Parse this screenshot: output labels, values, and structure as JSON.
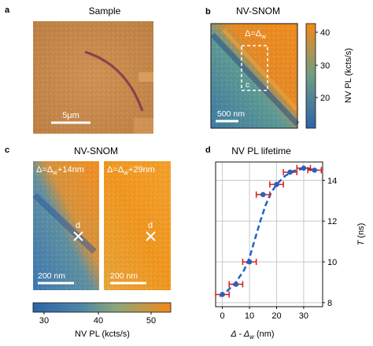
{
  "panels": {
    "a": {
      "letter": "a",
      "title": "Sample",
      "scalebar": "5μm"
    },
    "b": {
      "letter": "b",
      "title": "NV-SNOM",
      "delta_label": "Δ=Δ",
      "delta_sub": "w",
      "box_label": "c",
      "scalebar": "500 nm",
      "colorbar": {
        "ticks": [
          "40",
          "30",
          "20"
        ],
        "label": "NV PL (kcts/s)"
      }
    },
    "c": {
      "letter": "c",
      "title": "NV-SNOM",
      "left": {
        "label_pre": "Δ=Δ",
        "label_sub": "w",
        "label_post": "+14nm",
        "marker": "d",
        "scalebar": "200 nm"
      },
      "right": {
        "label_pre": "Δ=Δ",
        "label_sub": "w",
        "label_post": "+29nm",
        "marker": "d",
        "scalebar": "200 nm"
      },
      "colorbar": {
        "ticks": [
          "30",
          "40",
          "50"
        ],
        "label": "NV PL (kcts/s)"
      }
    },
    "d": {
      "letter": "d",
      "title": "NV PL lifetime"
    }
  },
  "colors": {
    "optical_bg": "#c98a4c",
    "flake_line": "#8a3f4e",
    "cmap_low": "#2e63a8",
    "cmap_mid": "#6f9c86",
    "cmap_high": "#f28a18",
    "fit_line": "#1f63c6",
    "marker_fill": "#2f5fb8",
    "errorbar": "#d21e1e"
  },
  "chart_data": {
    "type": "scatter",
    "title": "NV PL lifetime",
    "xlabel": "Δ - Δ",
    "xlabel_sub": "w",
    "xlabel_unit": " (nm)",
    "ylabel": "T",
    "ylabel_unit": " (ns)",
    "xlim": [
      -2.5,
      37
    ],
    "ylim": [
      7.8,
      14.9
    ],
    "xticks": [
      0,
      10,
      20,
      30
    ],
    "yticks": [
      8,
      10,
      12,
      14
    ],
    "grid": true,
    "points": [
      {
        "x": 0,
        "y": 8.4,
        "xerr": 2.5
      },
      {
        "x": 5,
        "y": 8.9,
        "xerr": 2.5
      },
      {
        "x": 10,
        "y": 10.0,
        "xerr": 2.5
      },
      {
        "x": 15,
        "y": 13.3,
        "xerr": 2.5
      },
      {
        "x": 20,
        "y": 13.8,
        "xerr": 2.5
      },
      {
        "x": 25,
        "y": 14.4,
        "xerr": 2.5
      },
      {
        "x": 30,
        "y": 14.6,
        "xerr": 2.5
      },
      {
        "x": 34,
        "y": 14.5,
        "xerr": 2.5
      }
    ],
    "fit": {
      "style": "dashed",
      "x": [
        -1,
        2,
        5,
        8,
        10,
        12,
        14,
        16,
        18,
        20,
        23,
        26,
        29,
        32,
        35
      ],
      "y": [
        8.3,
        8.6,
        9.0,
        9.6,
        10.2,
        11.1,
        12.0,
        12.8,
        13.4,
        13.8,
        14.2,
        14.45,
        14.55,
        14.55,
        14.5
      ]
    }
  }
}
